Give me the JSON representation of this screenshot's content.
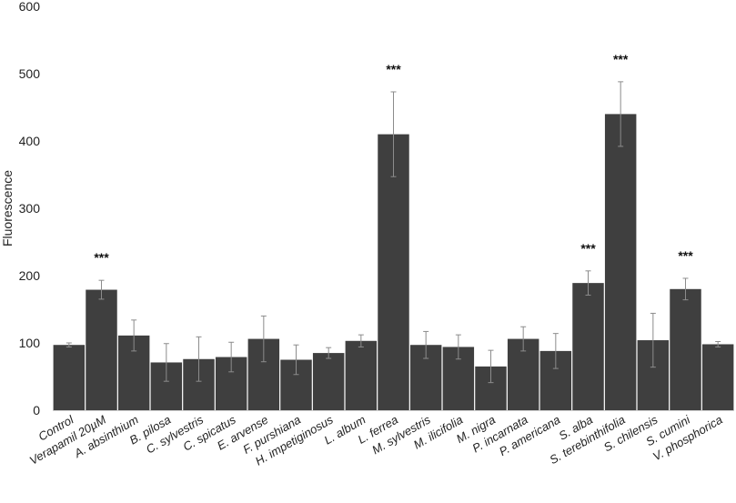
{
  "chart_data": {
    "type": "bar",
    "ylabel": "Fluorescence",
    "ylim": [
      0,
      600
    ],
    "yticks": [
      "0",
      "100",
      "200",
      "300",
      "400",
      "500",
      "600"
    ],
    "grid": false,
    "bar_color": "#3f3f3f",
    "error_bar_color": "#8c8c8c",
    "categories": [
      "Control",
      "Verapamil 20µM",
      "A. absinthium",
      "B. pilosa",
      "C. sylvestris",
      "C. spicatus",
      "E. arvense",
      "F. purshiana",
      "H. impetiginosus",
      "L. album",
      "L. ferrea",
      "M. sylvestris",
      "M. ilicifolia",
      "M. nigra",
      "P. incarnata",
      "P. americana",
      "S. alba",
      "S. terebinthifolia",
      "S. chilensis",
      "S. cumini",
      "V. phosphorica"
    ],
    "values": [
      97,
      179,
      111,
      71,
      76,
      79,
      106,
      75,
      85,
      103,
      410,
      97,
      94,
      65,
      106,
      88,
      189,
      440,
      104,
      180,
      98
    ],
    "errors": [
      3,
      14,
      23,
      28,
      33,
      22,
      34,
      22,
      8,
      9,
      63,
      20,
      18,
      24,
      18,
      26,
      18,
      48,
      40,
      16,
      4
    ],
    "significance": [
      "",
      "***",
      "",
      "",
      "",
      "",
      "",
      "",
      "",
      "",
      "***",
      "",
      "",
      "",
      "",
      "",
      "***",
      "***",
      "",
      "***",
      ""
    ]
  }
}
